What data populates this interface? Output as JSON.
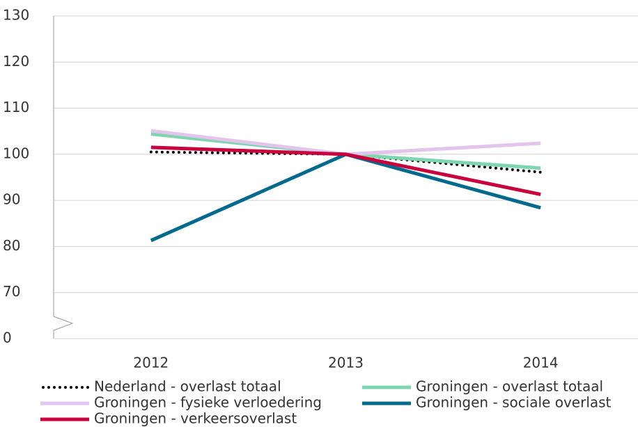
{
  "chart_data": {
    "type": "line",
    "categories": [
      "2012",
      "2013",
      "2014"
    ],
    "series": [
      {
        "name": "Nederland - overlast totaal",
        "color": "#000000",
        "dash": "dotted",
        "values": [
          100.5,
          100,
          96.1
        ]
      },
      {
        "name": "Groningen - overlast totaal",
        "color": "#7dd6b0",
        "values": [
          104.4,
          100,
          97.0
        ]
      },
      {
        "name": "Groningen - fysieke verloedering",
        "color": "#e3c4ec",
        "values": [
          105.1,
          100,
          102.4
        ]
      },
      {
        "name": "Groningen - sociale overlast",
        "color": "#006a8e",
        "values": [
          81.3,
          100,
          88.4
        ]
      },
      {
        "name": "Groningen - verkeersoverlast",
        "color": "#c8003c",
        "values": [
          101.5,
          100,
          91.3
        ]
      }
    ],
    "ylim": [
      0,
      130
    ],
    "yticks": [
      0,
      70,
      80,
      90,
      100,
      110,
      120,
      130
    ],
    "axis_break": [
      0,
      70
    ],
    "grid": true
  }
}
